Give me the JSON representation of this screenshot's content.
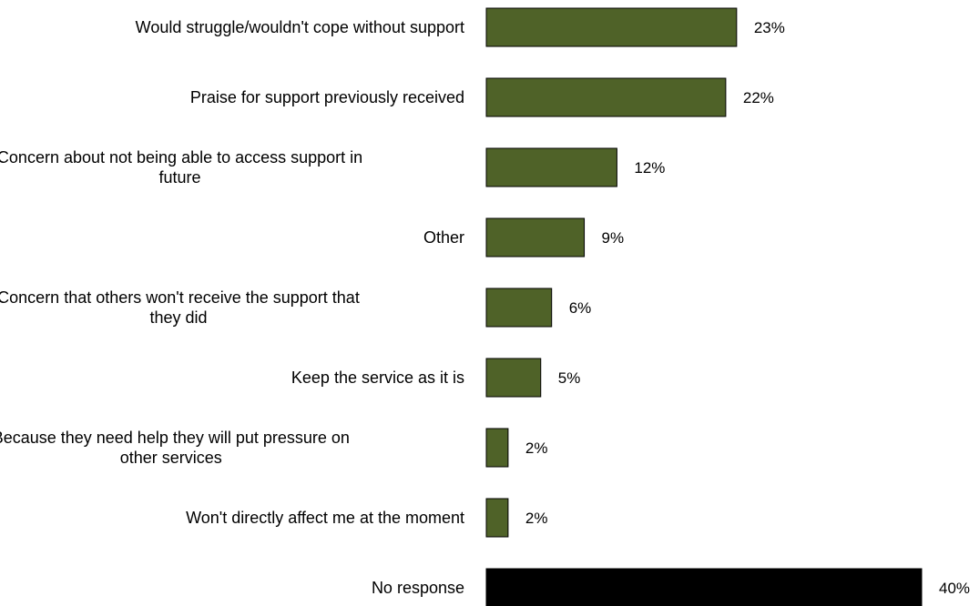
{
  "chart_data": {
    "type": "bar",
    "orientation": "horizontal",
    "categories": [
      [
        "Would struggle/wouldn't cope without support"
      ],
      [
        "Praise for support previously received"
      ],
      [
        "Concern about not being able to access support in",
        "future"
      ],
      [
        "Other"
      ],
      [
        "Concern that others won't receive the support that",
        "they did"
      ],
      [
        "Keep the service as it is"
      ],
      [
        "Because they need help they will put pressure on",
        "other services"
      ],
      [
        "Won't directly affect me at the moment"
      ],
      [
        "No response"
      ]
    ],
    "values": [
      23,
      22,
      12,
      9,
      6,
      5,
      2,
      2,
      40
    ],
    "value_labels": [
      "23%",
      "22%",
      "12%",
      "9%",
      "6%",
      "5%",
      "2%",
      "2%",
      "40%"
    ],
    "colors": [
      "#4f6228",
      "#4f6228",
      "#4f6228",
      "#4f6228",
      "#4f6228",
      "#4f6228",
      "#4f6228",
      "#4f6228",
      "#000000"
    ],
    "xlim": [
      0,
      40
    ],
    "grid": false,
    "legend": "none"
  }
}
